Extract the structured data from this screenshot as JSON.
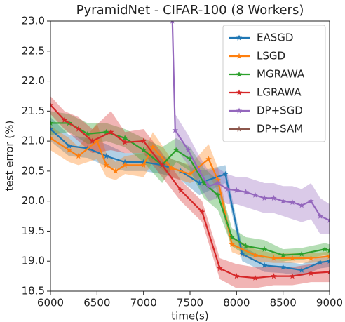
{
  "chart_data": {
    "type": "line",
    "title": "PyramidNet - CIFAR-100 (8 Workers)",
    "x_label": "time(s)",
    "y_label": "test error (%)",
    "xlim": [
      6000,
      9000
    ],
    "ylim": [
      18.5,
      23.0
    ],
    "xticks": [
      6000,
      6500,
      7000,
      7500,
      8000,
      8500,
      9000
    ],
    "yticks": [
      18.5,
      {
        "value": 19,
        "label": "19.0"
      },
      19.5,
      {
        "value": 20,
        "label": "20.0"
      },
      20.5,
      {
        "value": 21,
        "label": "21.0"
      },
      21.5,
      {
        "value": 22,
        "label": "22.0"
      },
      22.5,
      {
        "value": 23,
        "label": "23.0"
      }
    ],
    "legend": "upper right",
    "series": [
      {
        "name": "EASGD",
        "color": "#1f77b4",
        "x": [
          6000,
          6200,
          6400,
          6600,
          6800,
          7000,
          7200,
          7400,
          7600,
          7880,
          8060,
          8300,
          8500,
          8700,
          8900,
          9000
        ],
        "values": [
          21.2,
          20.92,
          20.88,
          20.75,
          20.65,
          20.65,
          20.6,
          20.5,
          20.3,
          20.45,
          19.12,
          18.93,
          18.9,
          18.85,
          18.98,
          19.0
        ],
        "lower": [
          21.0,
          20.75,
          20.72,
          20.58,
          20.5,
          20.5,
          20.45,
          20.35,
          20.1,
          20.3,
          19.0,
          18.82,
          18.8,
          18.75,
          18.88,
          18.9
        ],
        "upper": [
          21.4,
          21.1,
          21.05,
          20.95,
          20.8,
          20.8,
          20.75,
          20.65,
          20.5,
          20.6,
          19.25,
          19.05,
          19.0,
          18.95,
          19.08,
          19.1
        ]
      },
      {
        "name": "LSGD",
        "color": "#ff7f0e",
        "x": [
          6000,
          6200,
          6300,
          6500,
          6600,
          6700,
          6800,
          7000,
          7100,
          7300,
          7500,
          7700,
          7800,
          7950,
          8200,
          8400,
          8600,
          8800,
          9000
        ],
        "values": [
          21.05,
          20.85,
          20.75,
          21.0,
          20.6,
          20.5,
          20.6,
          20.6,
          20.9,
          20.55,
          20.45,
          20.7,
          20.35,
          19.28,
          19.1,
          19.05,
          19.05,
          19.05,
          19.08
        ],
        "lower": [
          20.85,
          20.65,
          20.6,
          20.7,
          20.4,
          20.35,
          20.45,
          20.4,
          20.65,
          20.4,
          20.3,
          20.45,
          20.15,
          19.15,
          19.0,
          18.97,
          18.97,
          18.97,
          19.0
        ],
        "upper": [
          21.25,
          21.05,
          20.9,
          21.3,
          20.8,
          20.65,
          20.75,
          20.8,
          21.15,
          20.7,
          20.6,
          20.95,
          20.55,
          19.4,
          19.2,
          19.13,
          19.13,
          19.13,
          19.16
        ]
      },
      {
        "name": "MGRAWA",
        "color": "#2ca02c",
        "x": [
          6000,
          6200,
          6400,
          6600,
          6800,
          7000,
          7200,
          7350,
          7500,
          7650,
          7800,
          7950,
          8100,
          8300,
          8500,
          8700,
          8950,
          9000
        ],
        "values": [
          21.3,
          21.3,
          21.12,
          21.15,
          21.05,
          20.85,
          20.6,
          20.85,
          20.7,
          20.3,
          20.1,
          19.4,
          19.25,
          19.2,
          19.1,
          19.12,
          19.2,
          19.18
        ],
        "lower": [
          21.1,
          21.15,
          20.95,
          21.0,
          20.9,
          20.65,
          20.3,
          20.65,
          20.5,
          20.05,
          19.85,
          19.25,
          19.1,
          19.05,
          19.0,
          19.02,
          19.1,
          19.08
        ],
        "upper": [
          21.5,
          21.45,
          21.3,
          21.3,
          21.2,
          21.05,
          20.9,
          21.05,
          20.9,
          20.55,
          20.35,
          19.55,
          19.4,
          19.35,
          19.2,
          19.22,
          19.3,
          19.28
        ]
      },
      {
        "name": "LGRAWA",
        "color": "#d62728",
        "x": [
          6000,
          6150,
          6300,
          6450,
          6650,
          6800,
          7000,
          7200,
          7400,
          7630,
          7820,
          8000,
          8200,
          8400,
          8600,
          8800,
          9000
        ],
        "values": [
          21.6,
          21.35,
          21.2,
          21.0,
          21.15,
          20.98,
          21.0,
          20.6,
          20.18,
          19.82,
          18.88,
          18.75,
          18.72,
          18.75,
          18.75,
          18.8,
          18.82
        ],
        "lower": [
          21.45,
          21.2,
          21.0,
          20.8,
          20.85,
          20.8,
          20.8,
          20.4,
          20.0,
          19.65,
          18.7,
          18.55,
          18.55,
          18.6,
          18.6,
          18.65,
          18.65
        ],
        "upper": [
          21.75,
          21.5,
          21.4,
          21.2,
          21.5,
          21.15,
          21.2,
          20.8,
          20.35,
          20.0,
          19.05,
          18.95,
          18.9,
          18.9,
          18.9,
          18.95,
          19.0
        ]
      },
      {
        "name": "DP+SGD",
        "color": "#9467bd",
        "x": [
          7310,
          7340,
          7480,
          7600,
          7700,
          7800,
          7900,
          8000,
          8100,
          8200,
          8300,
          8400,
          8500,
          8600,
          8700,
          8800,
          8900,
          9000
        ],
        "values": [
          23.0,
          21.18,
          20.85,
          20.5,
          20.25,
          20.3,
          20.2,
          20.18,
          20.15,
          20.1,
          20.05,
          20.05,
          20.0,
          19.98,
          19.93,
          20.0,
          19.75,
          19.68
        ],
        "lower": [
          22.8,
          20.9,
          20.6,
          20.25,
          20.0,
          20.05,
          19.95,
          19.95,
          19.9,
          19.85,
          19.8,
          19.8,
          19.75,
          19.7,
          19.65,
          19.7,
          19.45,
          19.45
        ],
        "upper": [
          23.0,
          21.45,
          21.1,
          20.75,
          20.5,
          20.55,
          20.45,
          20.4,
          20.4,
          20.35,
          20.3,
          20.3,
          20.25,
          20.25,
          20.2,
          20.3,
          20.05,
          19.95
        ]
      },
      {
        "name": "DP+SAM",
        "color": "#8c564b",
        "x": [],
        "values": [],
        "lower": [],
        "upper": []
      }
    ]
  }
}
